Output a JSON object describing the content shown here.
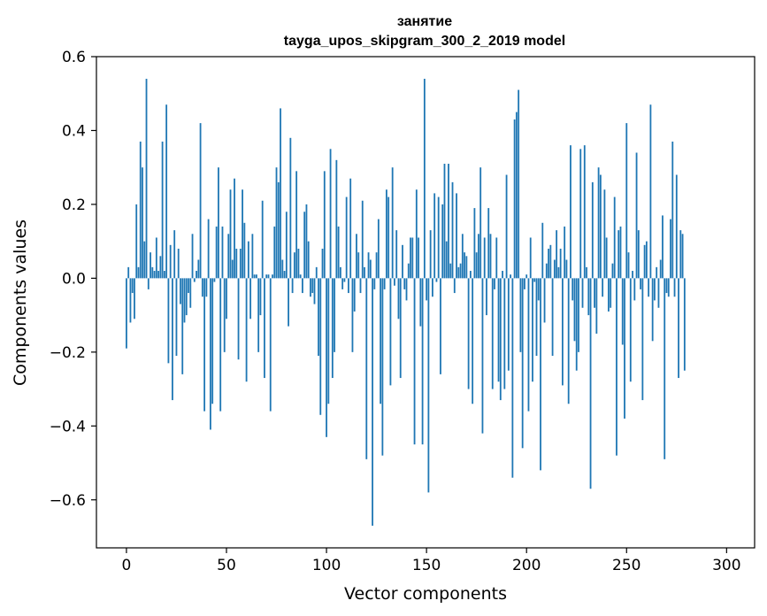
{
  "chart_data": {
    "type": "bar",
    "title": "занятие",
    "subtitle": "tayga_upos_skipgram_300_2_2019 model",
    "xlabel": "Vector components",
    "ylabel": "Components values",
    "xlim": [
      -15,
      314
    ],
    "ylim": [
      -0.73,
      0.6
    ],
    "xticks": [
      0,
      50,
      100,
      150,
      200,
      250,
      300
    ],
    "xtick_labels": [
      "0",
      "50",
      "100",
      "150",
      "200",
      "250",
      "300"
    ],
    "yticks": [
      0.6,
      0.4,
      0.2,
      0.0,
      -0.2,
      -0.4,
      -0.6
    ],
    "ytick_labels": [
      "0.6",
      "0.4",
      "0.2",
      "0.0",
      "−0.2",
      "−0.4",
      "−0.6"
    ],
    "bar_color": "#1f77b4",
    "series": [
      {
        "name": "занятие",
        "values": [
          -0.19,
          0.03,
          -0.12,
          -0.04,
          -0.11,
          0.2,
          0.03,
          0.37,
          0.3,
          0.1,
          0.54,
          -0.03,
          0.07,
          0.03,
          0.02,
          0.11,
          0.02,
          0.06,
          0.37,
          0.02,
          0.47,
          -0.23,
          0.09,
          -0.33,
          0.13,
          -0.21,
          0.08,
          -0.07,
          -0.26,
          -0.12,
          -0.1,
          -0.04,
          -0.08,
          0.12,
          -0.01,
          0.02,
          0.05,
          0.42,
          -0.05,
          -0.36,
          -0.05,
          0.16,
          -0.41,
          -0.34,
          -0.01,
          0.14,
          0.3,
          -0.36,
          0.14,
          -0.2,
          -0.11,
          0.12,
          0.24,
          0.05,
          0.27,
          0.08,
          -0.22,
          0.08,
          0.24,
          0.15,
          -0.28,
          0.1,
          -0.11,
          0.12,
          0.01,
          0.01,
          -0.2,
          -0.1,
          0.21,
          -0.27,
          0.01,
          0.01,
          -0.36,
          0.01,
          0.14,
          0.3,
          0.26,
          0.46,
          0.05,
          0.02,
          0.18,
          -0.13,
          0.38,
          -0.04,
          0.07,
          0.29,
          0.08,
          0.01,
          -0.04,
          0.18,
          0.2,
          0.1,
          -0.05,
          -0.04,
          -0.07,
          0.03,
          -0.21,
          -0.37,
          0.08,
          0.29,
          -0.43,
          -0.34,
          0.35,
          -0.27,
          -0.2,
          0.32,
          0.14,
          0.03,
          -0.03,
          -0.01,
          0.22,
          -0.04,
          0.27,
          -0.2,
          -0.09,
          0.12,
          0.07,
          -0.04,
          0.21,
          0.03,
          -0.49,
          0.07,
          0.05,
          -0.67,
          -0.03,
          0.07,
          0.16,
          -0.34,
          -0.48,
          -0.03,
          0.24,
          0.22,
          -0.29,
          0.3,
          -0.02,
          0.13,
          -0.11,
          -0.27,
          0.09,
          -0.03,
          -0.06,
          0.04,
          0.11,
          0.11,
          -0.45,
          0.24,
          0.11,
          -0.13,
          -0.45,
          0.54,
          -0.06,
          -0.58,
          0.13,
          -0.05,
          0.23,
          -0.01,
          0.22,
          -0.26,
          0.2,
          0.31,
          0.1,
          0.31,
          0.04,
          0.26,
          -0.04,
          0.23,
          0.03,
          0.04,
          0.12,
          0.07,
          0.06,
          -0.3,
          0.02,
          -0.34,
          0.19,
          0.07,
          0.12,
          0.3,
          -0.42,
          0.11,
          -0.1,
          0.19,
          0.12,
          -0.3,
          -0.03,
          0.11,
          -0.28,
          -0.33,
          0.02,
          -0.3,
          0.28,
          -0.25,
          0.01,
          -0.54,
          0.43,
          0.45,
          0.51,
          -0.2,
          -0.46,
          -0.03,
          0.01,
          -0.36,
          0.11,
          -0.28,
          -0.01,
          -0.21,
          -0.06,
          -0.52,
          0.15,
          -0.12,
          0.04,
          0.08,
          0.09,
          -0.21,
          0.05,
          0.13,
          0.03,
          0.08,
          -0.29,
          0.14,
          0.05,
          -0.34,
          0.36,
          -0.06,
          -0.17,
          -0.25,
          -0.2,
          0.35,
          -0.08,
          0.36,
          0.03,
          -0.1,
          -0.57,
          0.26,
          -0.08,
          -0.15,
          0.3,
          0.28,
          -0.05,
          0.24,
          0.11,
          -0.09,
          -0.08,
          0.04,
          0.22,
          -0.48,
          0.13,
          0.14,
          -0.18,
          -0.38,
          0.42,
          0.07,
          -0.28,
          0.02,
          -0.06,
          0.34,
          0.13,
          -0.03,
          -0.33,
          0.09,
          0.1,
          -0.05,
          0.47,
          -0.17,
          -0.06,
          0.03,
          -0.08,
          0.05,
          0.17,
          -0.49,
          -0.04,
          -0.05,
          0.16,
          0.37,
          -0.05,
          0.28,
          -0.27,
          0.13,
          0.12,
          -0.25
        ]
      }
    ]
  }
}
